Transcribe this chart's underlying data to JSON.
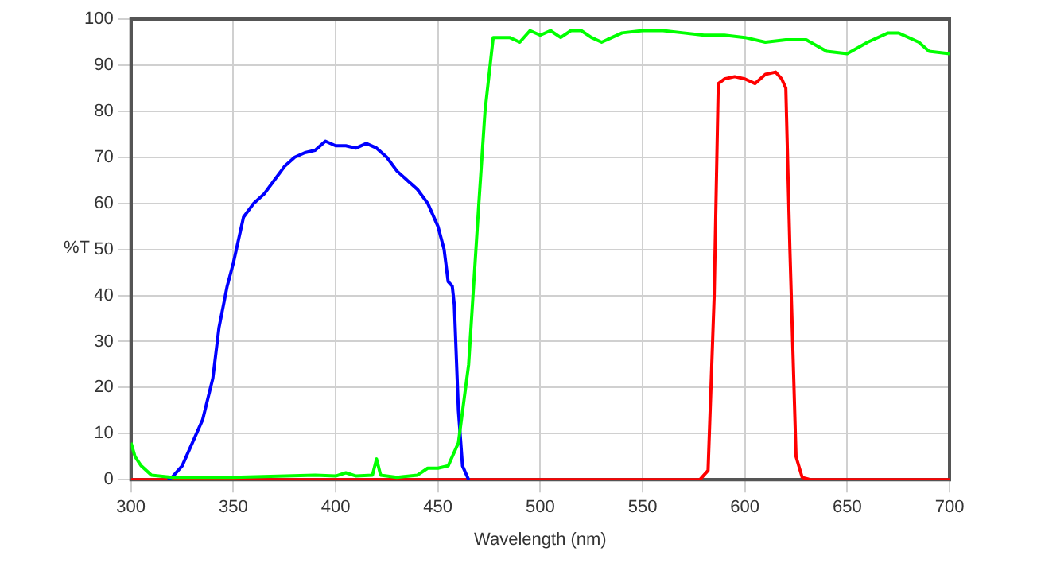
{
  "chart_data": {
    "type": "line",
    "xlabel": "Wavelength (nm)",
    "ylabel": "%T",
    "xlim": [
      300,
      700
    ],
    "xticks": [
      300,
      350,
      400,
      450,
      500,
      550,
      600,
      650,
      700
    ],
    "ylim": [
      0,
      100
    ],
    "yticks": [
      0,
      10,
      20,
      30,
      40,
      50,
      60,
      70,
      80,
      90,
      100
    ],
    "grid": true,
    "marker": "none",
    "line_style": "solid",
    "series": [
      {
        "color": "#00ff00",
        "x": [
          300,
          302,
          305,
          310,
          320,
          350,
          390,
          400,
          405,
          410,
          418,
          420,
          422,
          430,
          440,
          445,
          450,
          455,
          460,
          465,
          470,
          473,
          477,
          480,
          485,
          490,
          495,
          500,
          505,
          510,
          515,
          520,
          525,
          530,
          540,
          550,
          560,
          570,
          580,
          590,
          600,
          610,
          620,
          630,
          640,
          650,
          660,
          670,
          675,
          685,
          690,
          700
        ],
        "values": [
          8,
          5,
          3,
          1,
          0.5,
          0.5,
          1,
          0.8,
          1.5,
          0.8,
          1,
          4.5,
          1,
          0.5,
          1,
          2.5,
          2.5,
          3,
          8,
          25,
          60,
          80,
          96,
          96,
          96,
          95,
          97.5,
          96.5,
          97.5,
          96,
          97.5,
          97.5,
          96,
          95,
          97,
          97.5,
          97.5,
          97,
          96.5,
          96.5,
          96,
          95,
          95.5,
          95.5,
          93,
          92.5,
          95,
          97,
          97,
          95,
          93,
          92.5
        ]
      },
      {
        "color": "#0000ff",
        "x": [
          318,
          320,
          325,
          330,
          335,
          340,
          343,
          347,
          350,
          355,
          360,
          365,
          370,
          375,
          380,
          385,
          390,
          395,
          400,
          405,
          410,
          415,
          420,
          425,
          430,
          435,
          440,
          445,
          450,
          453,
          455,
          457,
          458,
          460,
          462,
          465
        ],
        "values": [
          0,
          0.5,
          3,
          8,
          13,
          22,
          33,
          42,
          47,
          57,
          60,
          62,
          65,
          68,
          70,
          71,
          71.5,
          73.5,
          72.5,
          72.5,
          72,
          73,
          72,
          70,
          67,
          65,
          63,
          60,
          55,
          50,
          43,
          42,
          38,
          15,
          3,
          0
        ]
      },
      {
        "color": "#ff0000",
        "x": [
          300,
          578,
          582,
          585,
          587,
          590,
          595,
          600,
          605,
          610,
          615,
          618,
          620,
          622,
          625,
          628,
          632,
          700
        ],
        "values": [
          0,
          0,
          2,
          40,
          86,
          87,
          87.5,
          87,
          86,
          88,
          88.5,
          87,
          85,
          50,
          5,
          0.5,
          0,
          0
        ]
      }
    ]
  }
}
